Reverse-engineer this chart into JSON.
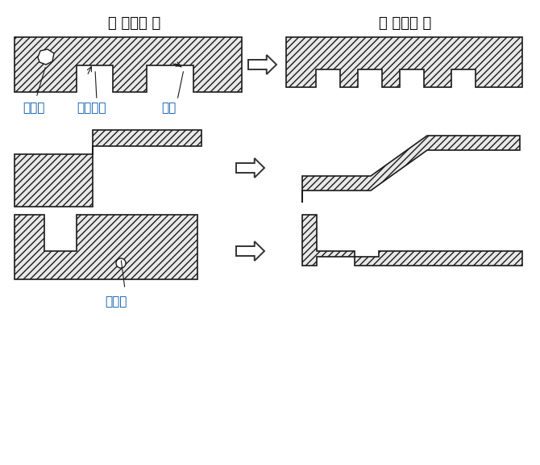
{
  "title_bad": "【 悪い例 】",
  "title_good": "【 良い例 】",
  "hatch_pattern": "////",
  "label_void1": "ボイド",
  "label_stress": "ストレス",
  "label_hike": "ヒケ",
  "label_void2": "ボイド",
  "edge_color": "#1a1a1a",
  "hatch_color": "#555555",
  "face_color": "#e8e8e8",
  "bg_color": "#ffffff",
  "arrow_color": "#333333",
  "label_color": "#0055aa",
  "title_fontsize": 13,
  "label_fontsize": 11
}
